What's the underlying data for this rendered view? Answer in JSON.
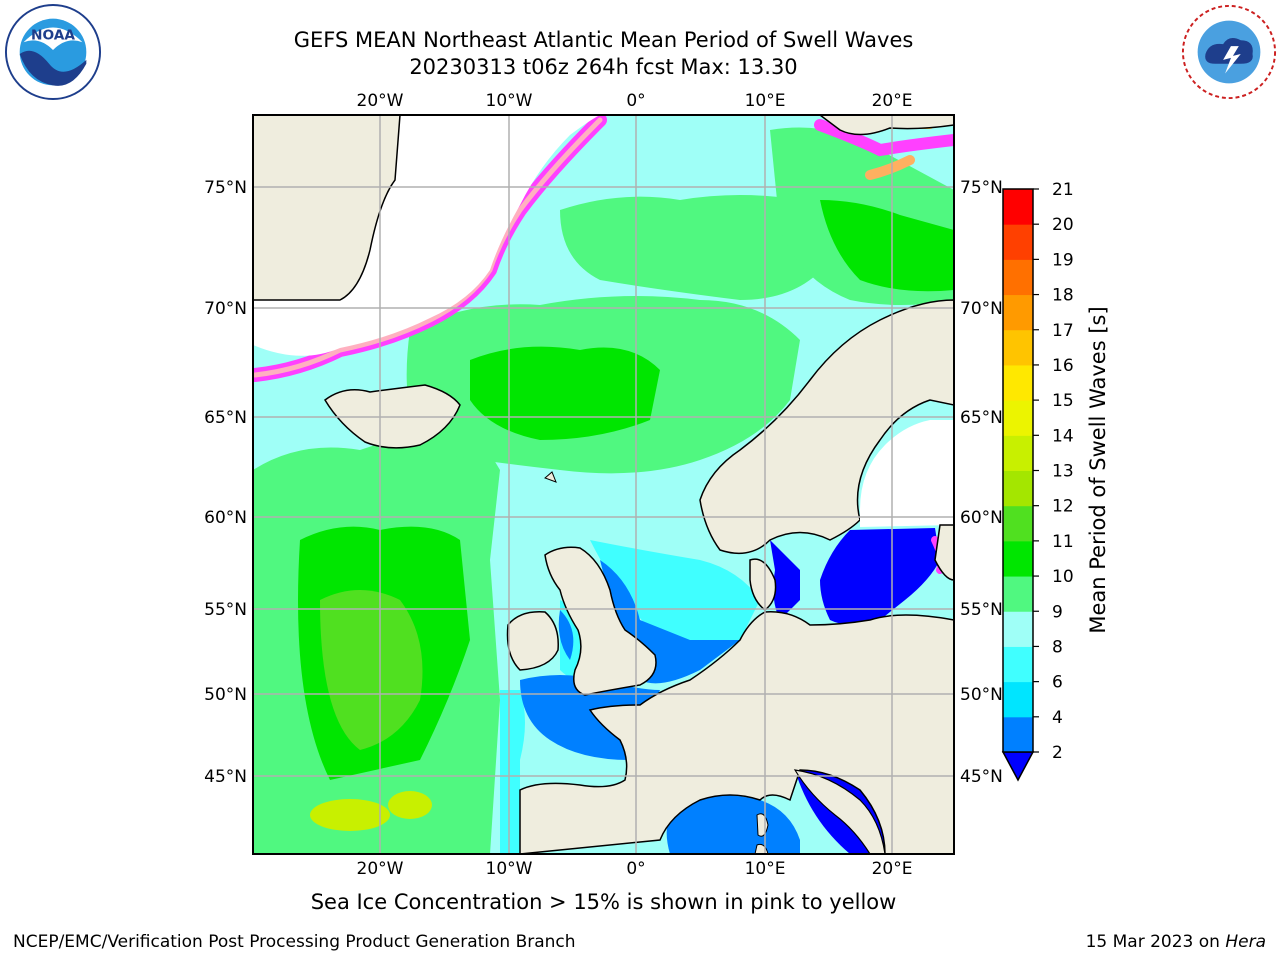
{
  "title": {
    "line1": "GEFS MEAN Northeast Atlantic Mean Period of Swell Waves",
    "line2": "20230313 t06z 264h fcst   Max: 13.30"
  },
  "logos": {
    "left": {
      "name": "NOAA",
      "text": "NOAA"
    },
    "right": {
      "name": "National Weather Service"
    }
  },
  "map": {
    "lon_labels": [
      "20°W",
      "10°W",
      "0°",
      "10°E",
      "20°E"
    ],
    "lat_labels": [
      "75°N",
      "70°N",
      "65°N",
      "60°N",
      "55°N",
      "50°N",
      "45°N"
    ],
    "colors": {
      "land": "#efedde",
      "ice_free": "#ffffff",
      "coast": "#000000",
      "grid": "#b0b0b0"
    }
  },
  "colorbar": {
    "label": "Mean Period of Swell Waves [s]",
    "ticks": [
      "2",
      "4",
      "6",
      "8",
      "9",
      "10",
      "11",
      "12",
      "13",
      "14",
      "15",
      "16",
      "17",
      "18",
      "19",
      "20",
      "21"
    ],
    "colors": [
      "#0000ff",
      "#0080ff",
      "#00e5ff",
      "#40ffff",
      "#9ffff7",
      "#50f880",
      "#00e600",
      "#50e020",
      "#a4e600",
      "#c8f000",
      "#ecf400",
      "#ffe800",
      "#ffc400",
      "#ff9a00",
      "#ff7000",
      "#ff4000",
      "#ff0000"
    ]
  },
  "footer": {
    "note": "Sea Ice Concentration > 15% is shown in pink to yellow",
    "credit": "NCEP/EMC/Verification Post Processing Product Generation Branch",
    "date_prefix": "15 Mar 2023 on ",
    "host": "Hera"
  }
}
